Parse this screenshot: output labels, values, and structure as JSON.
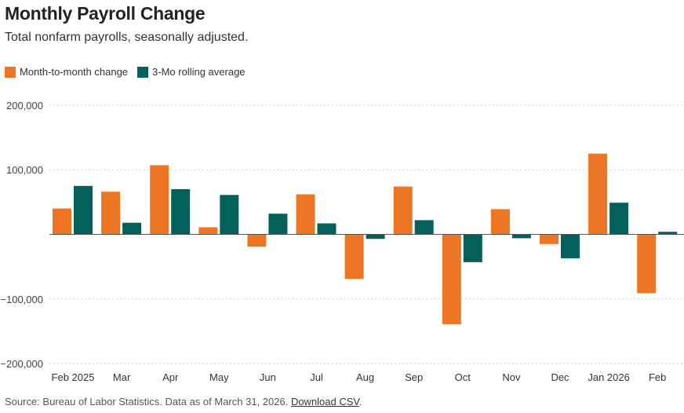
{
  "title": "Monthly Payroll Change",
  "subtitle": "Total nonfarm payrolls, seasonally adjusted.",
  "footer": {
    "source": "Source: Bureau of Labor Statistics. Data as of March 31, 2026.",
    "link": "Download CSV",
    "end": "."
  },
  "colors": {
    "month": "#ec7623",
    "avg": "#03605b"
  },
  "chart_data": {
    "type": "bar",
    "categories": [
      "Feb 2025",
      "Mar",
      "Apr",
      "May",
      "Jun",
      "Jul",
      "Aug",
      "Sep",
      "Oct",
      "Nov",
      "Dec",
      "Jan 2026",
      "Feb"
    ],
    "series": [
      {
        "name": "Month-to-month change",
        "values": [
          40000,
          66000,
          107000,
          11000,
          -19000,
          62000,
          -69000,
          74000,
          -139000,
          39000,
          -15000,
          125000,
          -91000
        ]
      },
      {
        "name": "3-Mo rolling average",
        "values": [
          75000,
          18000,
          70000,
          61000,
          32000,
          17000,
          -7000,
          22000,
          -43000,
          -6000,
          -37000,
          49000,
          4000
        ]
      }
    ],
    "ylim": [
      -200000,
      200000
    ],
    "yticks": [
      200000,
      100000,
      0,
      -100000,
      -200000
    ],
    "ytick_labels": [
      "200,000",
      "100,000",
      "",
      "−100,000",
      "−200,000"
    ],
    "grid": true,
    "legend": "top-left"
  }
}
